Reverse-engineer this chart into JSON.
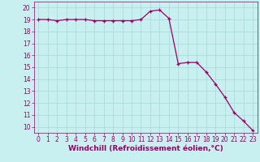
{
  "x": [
    0,
    1,
    2,
    3,
    4,
    5,
    6,
    7,
    8,
    9,
    10,
    11,
    12,
    13,
    14,
    15,
    16,
    17,
    18,
    19,
    20,
    21,
    22,
    23
  ],
  "y": [
    19.0,
    19.0,
    18.9,
    19.0,
    19.0,
    19.0,
    18.9,
    18.9,
    18.9,
    18.9,
    18.9,
    19.0,
    19.7,
    19.8,
    19.1,
    15.3,
    15.4,
    15.4,
    14.6,
    13.6,
    12.5,
    11.2,
    10.5,
    9.7
  ],
  "line_color": "#990066",
  "marker": "+",
  "markersize": 3,
  "linewidth": 0.9,
  "xlabel": "Windchill (Refroidissement éolien,°C)",
  "xlabel_fontsize": 6.5,
  "xlim": [
    -0.5,
    23.5
  ],
  "ylim": [
    9.5,
    20.5
  ],
  "yticks": [
    10,
    11,
    12,
    13,
    14,
    15,
    16,
    17,
    18,
    19,
    20
  ],
  "xticks": [
    0,
    1,
    2,
    3,
    4,
    5,
    6,
    7,
    8,
    9,
    10,
    11,
    12,
    13,
    14,
    15,
    16,
    17,
    18,
    19,
    20,
    21,
    22,
    23
  ],
  "background_color": "#C8F0F0",
  "grid_color": "#A8D8D8",
  "tick_fontsize": 5.5,
  "tick_color": "#990066",
  "label_color": "#990066"
}
